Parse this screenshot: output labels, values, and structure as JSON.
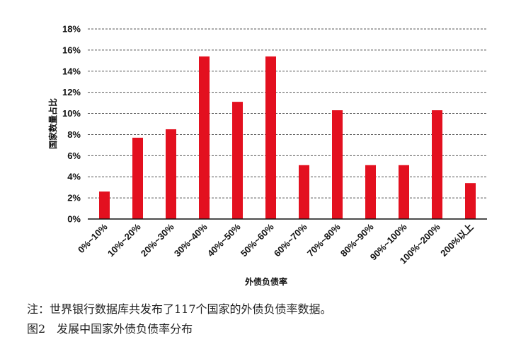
{
  "chart_data": {
    "type": "bar",
    "categories": [
      "0%~10%",
      "10%~20%",
      "20%~30%",
      "30%~40%",
      "40%~50%",
      "50%~60%",
      "60%~70%",
      "70%~80%",
      "80%~90%",
      "90%~100%",
      "100%~200%",
      "200%以上"
    ],
    "values": [
      2.6,
      7.7,
      8.5,
      15.4,
      11.1,
      15.4,
      5.1,
      10.3,
      5.1,
      5.1,
      10.3,
      3.4
    ],
    "ylim": [
      0,
      18
    ],
    "yticks": [
      "0%",
      "2%",
      "4%",
      "6%",
      "8%",
      "10%",
      "12%",
      "14%",
      "16%",
      "18%"
    ],
    "ylabel": "国家数量占比",
    "xlabel": "外债负债率",
    "bar_color": "#e3101f",
    "grid": "horizontal-dashed"
  },
  "note": "注：世界银行数据库共发布了117个国家的外债负债率数据。",
  "caption": "图2　发展中国家外债负债率分布"
}
